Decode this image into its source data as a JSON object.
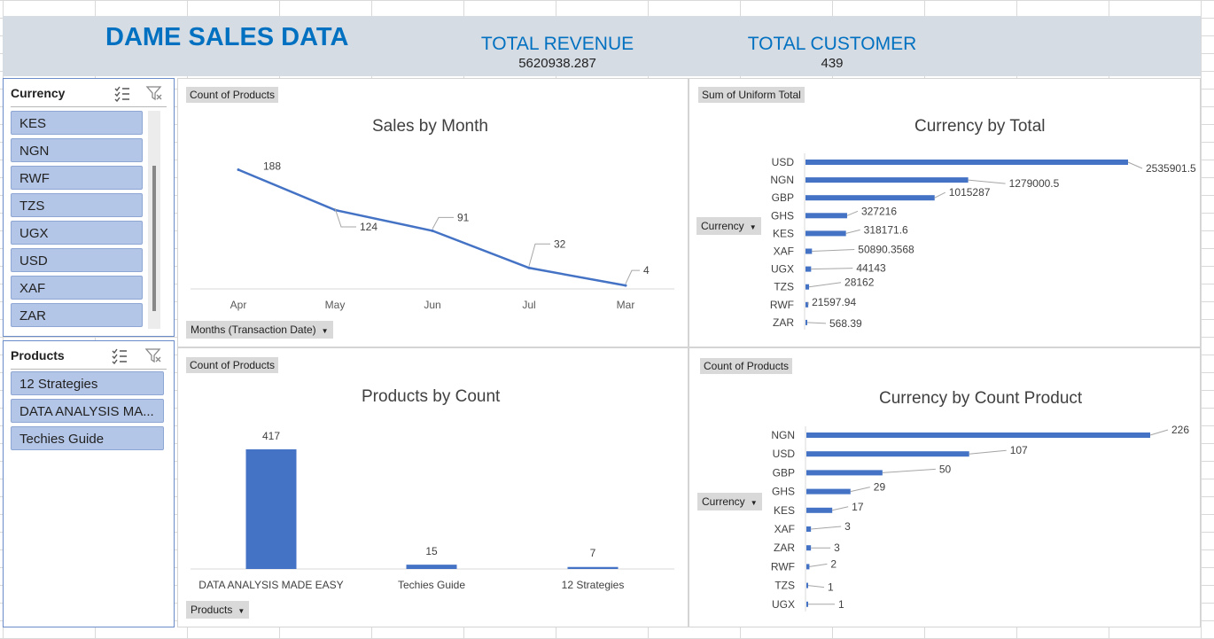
{
  "header": {
    "title": "DAME SALES DATA",
    "total_revenue_label": "TOTAL REVENUE",
    "total_revenue_value": "5620938.287",
    "total_customer_label": "TOTAL CUSTOMER",
    "total_customer_value": "439"
  },
  "slicers": {
    "currency": {
      "title": "Currency",
      "items": [
        "KES",
        "NGN",
        "RWF",
        "TZS",
        "UGX",
        "USD",
        "XAF",
        "ZAR"
      ]
    },
    "products": {
      "title": "Products",
      "items": [
        "12 Strategies",
        "DATA ANALYSIS MA...",
        "Techies Guide"
      ]
    }
  },
  "panels": {
    "sales_by_month": {
      "field_tag": "Count of Products",
      "axis_button": "Months (Transaction Date)"
    },
    "currency_by_total": {
      "field_tag": "Sum of Uniform Total",
      "axis_button": "Currency"
    },
    "products_by_count": {
      "field_tag": "Count of Products",
      "axis_button": "Products"
    },
    "currency_by_count": {
      "field_tag": "Count of Products",
      "axis_button": "Currency"
    }
  },
  "colors": {
    "series": "#4472c4",
    "accent": "#0070c0",
    "header_bg": "#d6dce4",
    "slicer_item": "#b4c6e7"
  },
  "icons": [
    "multi-select-icon",
    "clear-filter-icon",
    "dropdown-arrow-icon"
  ],
  "chart_data": [
    {
      "id": "sales_by_month",
      "type": "line",
      "title": "Sales by Month",
      "categories": [
        "Apr",
        "May",
        "Jun",
        "Jul",
        "Mar"
      ],
      "values": [
        188,
        124,
        91,
        32,
        4
      ],
      "ylim": [
        0,
        200
      ],
      "grid": false,
      "legend": "none"
    },
    {
      "id": "currency_by_total",
      "type": "bar",
      "orientation": "horizontal",
      "title": "Currency by Total",
      "categories": [
        "USD",
        "NGN",
        "GBP",
        "GHS",
        "KES",
        "XAF",
        "UGX",
        "TZS",
        "RWF",
        "ZAR"
      ],
      "values": [
        2535901.5,
        1279000.5,
        1015287,
        327216,
        318171.6,
        50890.3568,
        44143,
        28162,
        21597.94,
        568.39
      ],
      "labels": [
        "2535901.5",
        "1279000.5",
        "1015287",
        "327216",
        "318171.6",
        "50890.3568",
        "44143",
        "28162",
        "21597.94",
        "568.39"
      ],
      "grid": false,
      "legend": "none"
    },
    {
      "id": "products_by_count",
      "type": "bar",
      "title": "Products by Count",
      "categories": [
        "DATA ANALYSIS MADE EASY",
        "Techies Guide",
        "12 Strategies"
      ],
      "values": [
        417,
        15,
        7
      ],
      "ylim": [
        0,
        417
      ],
      "grid": false,
      "legend": "none"
    },
    {
      "id": "currency_by_count",
      "type": "bar",
      "orientation": "horizontal",
      "title": "Currency by Count Product",
      "categories": [
        "NGN",
        "USD",
        "GBP",
        "GHS",
        "KES",
        "XAF",
        "ZAR",
        "RWF",
        "TZS",
        "UGX"
      ],
      "values": [
        226,
        107,
        50,
        29,
        17,
        3,
        3,
        2,
        1,
        1
      ],
      "grid": false,
      "legend": "none"
    }
  ]
}
